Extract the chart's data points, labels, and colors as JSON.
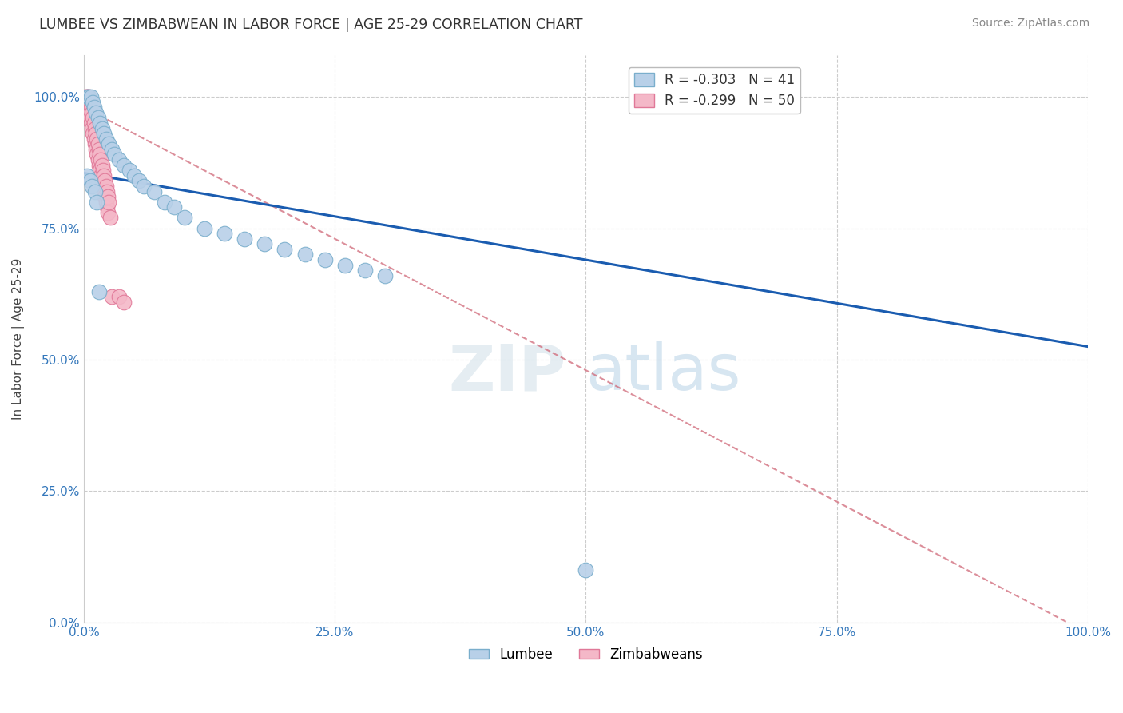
{
  "title": "LUMBEE VS ZIMBABWEAN IN LABOR FORCE | AGE 25-29 CORRELATION CHART",
  "source": "Source: ZipAtlas.com",
  "ylabel": "In Labor Force | Age 25-29",
  "xlim": [
    0.0,
    1.0
  ],
  "ylim": [
    0.0,
    1.08
  ],
  "xticks": [
    0.0,
    0.25,
    0.5,
    0.75,
    1.0
  ],
  "xtick_labels": [
    "0.0%",
    "25.0%",
    "50.0%",
    "75.0%",
    "100.0%"
  ],
  "yticks": [
    0.0,
    0.25,
    0.5,
    0.75,
    1.0
  ],
  "ytick_labels": [
    "0.0%",
    "25.0%",
    "50.0%",
    "75.0%",
    "100.0%"
  ],
  "lumbee_R": -0.303,
  "lumbee_N": 41,
  "zimbabwe_R": -0.299,
  "zimbabwe_N": 50,
  "lumbee_color": "#b8d0e8",
  "lumbee_edge": "#7aaecc",
  "zimbabwe_color": "#f4b8c8",
  "zimbabwe_edge": "#e07898",
  "trend_lumbee_color": "#1a5cb0",
  "trend_zimbabwe_color": "#d06878",
  "watermark_zip": "ZIP",
  "watermark_atlas": "atlas",
  "lumbee_x": [
    0.003,
    0.005,
    0.007,
    0.009,
    0.01,
    0.012,
    0.014,
    0.016,
    0.018,
    0.02,
    0.022,
    0.025,
    0.028,
    0.03,
    0.035,
    0.04,
    0.045,
    0.05,
    0.055,
    0.06,
    0.07,
    0.08,
    0.09,
    0.1,
    0.12,
    0.14,
    0.16,
    0.18,
    0.2,
    0.22,
    0.24,
    0.26,
    0.28,
    0.3,
    0.003,
    0.006,
    0.008,
    0.011,
    0.013,
    0.015,
    0.5
  ],
  "lumbee_y": [
    1.0,
    1.0,
    1.0,
    0.99,
    0.98,
    0.97,
    0.96,
    0.95,
    0.94,
    0.93,
    0.92,
    0.91,
    0.9,
    0.89,
    0.88,
    0.87,
    0.86,
    0.85,
    0.84,
    0.83,
    0.82,
    0.8,
    0.79,
    0.77,
    0.75,
    0.74,
    0.73,
    0.72,
    0.71,
    0.7,
    0.69,
    0.68,
    0.67,
    0.66,
    0.85,
    0.84,
    0.83,
    0.82,
    0.8,
    0.63,
    0.1
  ],
  "zimbabwe_x": [
    0.002,
    0.003,
    0.003,
    0.004,
    0.004,
    0.005,
    0.005,
    0.006,
    0.006,
    0.007,
    0.007,
    0.008,
    0.008,
    0.009,
    0.009,
    0.01,
    0.01,
    0.011,
    0.011,
    0.012,
    0.012,
    0.013,
    0.013,
    0.014,
    0.014,
    0.015,
    0.015,
    0.016,
    0.016,
    0.017,
    0.017,
    0.018,
    0.018,
    0.019,
    0.019,
    0.02,
    0.02,
    0.021,
    0.021,
    0.022,
    0.022,
    0.023,
    0.023,
    0.024,
    0.024,
    0.025,
    0.026,
    0.028,
    0.035,
    0.04
  ],
  "zimbabwe_y": [
    1.0,
    1.0,
    0.99,
    1.0,
    0.98,
    1.0,
    0.97,
    0.99,
    0.96,
    0.98,
    0.95,
    0.97,
    0.94,
    0.96,
    0.93,
    0.95,
    0.92,
    0.94,
    0.91,
    0.93,
    0.9,
    0.92,
    0.89,
    0.91,
    0.88,
    0.9,
    0.87,
    0.89,
    0.86,
    0.88,
    0.85,
    0.87,
    0.84,
    0.86,
    0.83,
    0.85,
    0.82,
    0.84,
    0.81,
    0.83,
    0.8,
    0.82,
    0.79,
    0.81,
    0.78,
    0.8,
    0.77,
    0.62,
    0.62,
    0.61
  ],
  "lumbee_trend_x0": 0.0,
  "lumbee_trend_y0": 0.855,
  "lumbee_trend_x1": 1.0,
  "lumbee_trend_y1": 0.525,
  "zimbabwe_trend_x0": 0.0,
  "zimbabwe_trend_y0": 0.98,
  "zimbabwe_trend_x1": 1.0,
  "zimbabwe_trend_y1": -0.02
}
